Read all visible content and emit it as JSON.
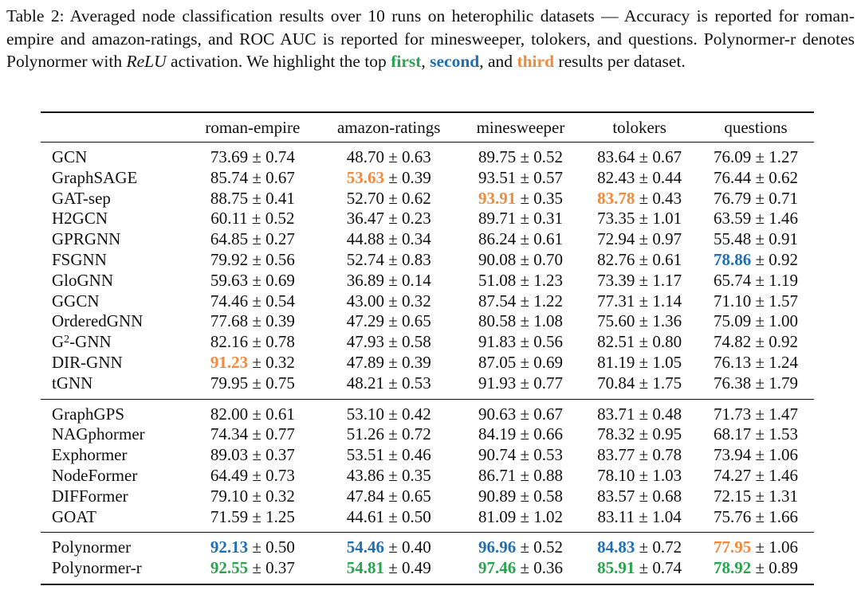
{
  "caption": {
    "part1": "Table 2: Averaged node classification results over 10 runs on heterophilic datasets — Accuracy is reported for roman-empire and amazon-ratings, and ROC AUC is reported for minesweeper, tolokers, and questions. Polynormer-r denotes Polynormer with ",
    "relu": "ReLU",
    "part2": " activation. We highlight the top ",
    "first": "first",
    "comma1": ", ",
    "second": "second",
    "comma2": ", and ",
    "third": "third",
    "part3": " results per dataset."
  },
  "colors": {
    "first": "#2aa44f",
    "second": "#1f6fb2",
    "third": "#f08a3c"
  },
  "table": {
    "columns": [
      "",
      "roman-empire",
      "amazon-ratings",
      "minesweeper",
      "tolokers",
      "questions"
    ],
    "groups": [
      {
        "rows": [
          {
            "model": "GCN",
            "cells": [
              {
                "v": "73.69",
                "e": "0.74"
              },
              {
                "v": "48.70",
                "e": "0.63"
              },
              {
                "v": "89.75",
                "e": "0.52"
              },
              {
                "v": "83.64",
                "e": "0.67"
              },
              {
                "v": "76.09",
                "e": "1.27"
              }
            ]
          },
          {
            "model": "GraphSAGE",
            "cells": [
              {
                "v": "85.74",
                "e": "0.67"
              },
              {
                "v": "53.63",
                "e": "0.39",
                "rank": "third"
              },
              {
                "v": "93.51",
                "e": "0.57"
              },
              {
                "v": "82.43",
                "e": "0.44"
              },
              {
                "v": "76.44",
                "e": "0.62"
              }
            ]
          },
          {
            "model": "GAT-sep",
            "cells": [
              {
                "v": "88.75",
                "e": "0.41"
              },
              {
                "v": "52.70",
                "e": "0.62"
              },
              {
                "v": "93.91",
                "e": "0.35",
                "rank": "third"
              },
              {
                "v": "83.78",
                "e": "0.43",
                "rank": "third"
              },
              {
                "v": "76.79",
                "e": "0.71"
              }
            ]
          },
          {
            "model": "H2GCN",
            "cells": [
              {
                "v": "60.11",
                "e": "0.52"
              },
              {
                "v": "36.47",
                "e": "0.23"
              },
              {
                "v": "89.71",
                "e": "0.31"
              },
              {
                "v": "73.35",
                "e": "1.01"
              },
              {
                "v": "63.59",
                "e": "1.46"
              }
            ]
          },
          {
            "model": "GPRGNN",
            "cells": [
              {
                "v": "64.85",
                "e": "0.27"
              },
              {
                "v": "44.88",
                "e": "0.34"
              },
              {
                "v": "86.24",
                "e": "0.61"
              },
              {
                "v": "72.94",
                "e": "0.97"
              },
              {
                "v": "55.48",
                "e": "0.91"
              }
            ]
          },
          {
            "model": "FSGNN",
            "cells": [
              {
                "v": "79.92",
                "e": "0.56"
              },
              {
                "v": "52.74",
                "e": "0.83"
              },
              {
                "v": "90.08",
                "e": "0.70"
              },
              {
                "v": "82.76",
                "e": "0.61"
              },
              {
                "v": "78.86",
                "e": "0.92",
                "rank": "second"
              }
            ]
          },
          {
            "model": "GloGNN",
            "cells": [
              {
                "v": "59.63",
                "e": "0.69"
              },
              {
                "v": "36.89",
                "e": "0.14"
              },
              {
                "v": "51.08",
                "e": "1.23"
              },
              {
                "v": "73.39",
                "e": "1.17"
              },
              {
                "v": "65.74",
                "e": "1.19"
              }
            ]
          },
          {
            "model": "GGCN",
            "cells": [
              {
                "v": "74.46",
                "e": "0.54"
              },
              {
                "v": "43.00",
                "e": "0.32"
              },
              {
                "v": "87.54",
                "e": "1.22"
              },
              {
                "v": "77.31",
                "e": "1.14"
              },
              {
                "v": "71.10",
                "e": "1.57"
              }
            ]
          },
          {
            "model": "OrderedGNN",
            "cells": [
              {
                "v": "77.68",
                "e": "0.39"
              },
              {
                "v": "47.29",
                "e": "0.65"
              },
              {
                "v": "80.58",
                "e": "1.08"
              },
              {
                "v": "75.60",
                "e": "1.36"
              },
              {
                "v": "75.09",
                "e": "1.00"
              }
            ]
          },
          {
            "model": "G",
            "sup": "2",
            "suffix": "-GNN",
            "cells": [
              {
                "v": "82.16",
                "e": "0.78"
              },
              {
                "v": "47.93",
                "e": "0.58"
              },
              {
                "v": "91.83",
                "e": "0.56"
              },
              {
                "v": "82.51",
                "e": "0.80"
              },
              {
                "v": "74.82",
                "e": "0.92"
              }
            ]
          },
          {
            "model": "DIR-GNN",
            "cells": [
              {
                "v": "91.23",
                "e": "0.32",
                "rank": "third"
              },
              {
                "v": "47.89",
                "e": "0.39"
              },
              {
                "v": "87.05",
                "e": "0.69"
              },
              {
                "v": "81.19",
                "e": "1.05"
              },
              {
                "v": "76.13",
                "e": "1.24"
              }
            ]
          },
          {
            "model": "tGNN",
            "cells": [
              {
                "v": "79.95",
                "e": "0.75"
              },
              {
                "v": "48.21",
                "e": "0.53"
              },
              {
                "v": "91.93",
                "e": "0.77"
              },
              {
                "v": "70.84",
                "e": "1.75"
              },
              {
                "v": "76.38",
                "e": "1.79"
              }
            ]
          }
        ]
      },
      {
        "rows": [
          {
            "model": "GraphGPS",
            "cells": [
              {
                "v": "82.00",
                "e": "0.61"
              },
              {
                "v": "53.10",
                "e": "0.42"
              },
              {
                "v": "90.63",
                "e": "0.67"
              },
              {
                "v": "83.71",
                "e": "0.48"
              },
              {
                "v": "71.73",
                "e": "1.47"
              }
            ]
          },
          {
            "model": "NAGphormer",
            "cells": [
              {
                "v": "74.34",
                "e": "0.77"
              },
              {
                "v": "51.26",
                "e": "0.72"
              },
              {
                "v": "84.19",
                "e": "0.66"
              },
              {
                "v": "78.32",
                "e": "0.95"
              },
              {
                "v": "68.17",
                "e": "1.53"
              }
            ]
          },
          {
            "model": "Exphormer",
            "cells": [
              {
                "v": "89.03",
                "e": "0.37"
              },
              {
                "v": "53.51",
                "e": "0.46"
              },
              {
                "v": "90.74",
                "e": "0.53"
              },
              {
                "v": "83.77",
                "e": "0.78"
              },
              {
                "v": "73.94",
                "e": "1.06"
              }
            ]
          },
          {
            "model": "NodeFormer",
            "cells": [
              {
                "v": "64.49",
                "e": "0.73"
              },
              {
                "v": "43.86",
                "e": "0.35"
              },
              {
                "v": "86.71",
                "e": "0.88"
              },
              {
                "v": "78.10",
                "e": "1.03"
              },
              {
                "v": "74.27",
                "e": "1.46"
              }
            ]
          },
          {
            "model": "DIFFormer",
            "cells": [
              {
                "v": "79.10",
                "e": "0.32"
              },
              {
                "v": "47.84",
                "e": "0.65"
              },
              {
                "v": "90.89",
                "e": "0.58"
              },
              {
                "v": "83.57",
                "e": "0.68"
              },
              {
                "v": "72.15",
                "e": "1.31"
              }
            ]
          },
          {
            "model": "GOAT",
            "cells": [
              {
                "v": "71.59",
                "e": "1.25"
              },
              {
                "v": "44.61",
                "e": "0.50"
              },
              {
                "v": "81.09",
                "e": "1.02"
              },
              {
                "v": "83.11",
                "e": "1.04"
              },
              {
                "v": "75.76",
                "e": "1.66"
              }
            ]
          }
        ]
      },
      {
        "rows": [
          {
            "model": "Polynormer",
            "cells": [
              {
                "v": "92.13",
                "e": "0.50",
                "rank": "second"
              },
              {
                "v": "54.46",
                "e": "0.40",
                "rank": "second"
              },
              {
                "v": "96.96",
                "e": "0.52",
                "rank": "second"
              },
              {
                "v": "84.83",
                "e": "0.72",
                "rank": "second"
              },
              {
                "v": "77.95",
                "e": "1.06",
                "rank": "third"
              }
            ]
          },
          {
            "model": "Polynormer-r",
            "cells": [
              {
                "v": "92.55",
                "e": "0.37",
                "rank": "first"
              },
              {
                "v": "54.81",
                "e": "0.49",
                "rank": "first"
              },
              {
                "v": "97.46",
                "e": "0.36",
                "rank": "first"
              },
              {
                "v": "85.91",
                "e": "0.74",
                "rank": "first"
              },
              {
                "v": "78.92",
                "e": "0.89",
                "rank": "first"
              }
            ]
          }
        ]
      }
    ]
  }
}
